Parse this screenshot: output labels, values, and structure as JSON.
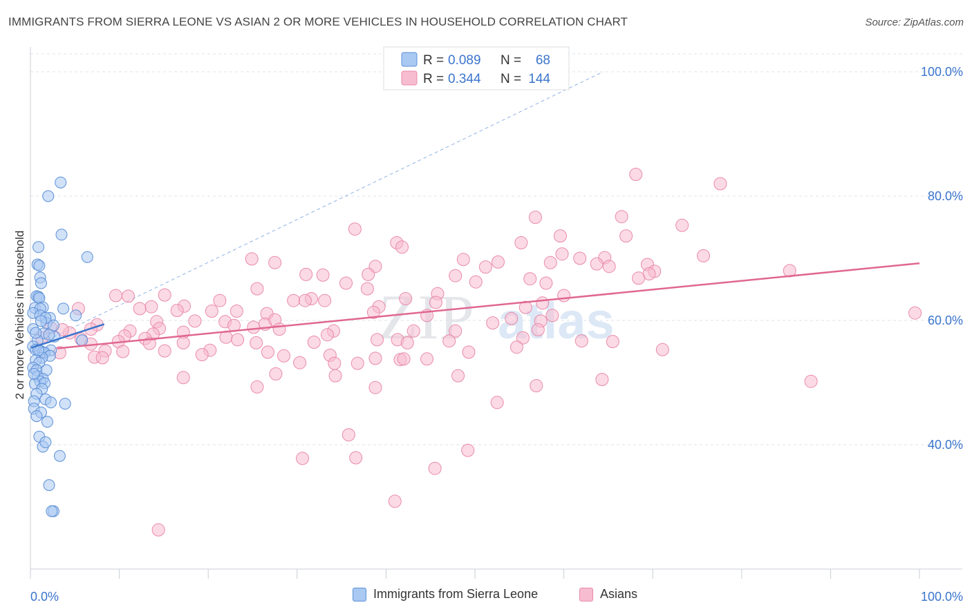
{
  "header": {
    "title": "IMMIGRANTS FROM SIERRA LEONE VS ASIAN 2 OR MORE VEHICLES IN HOUSEHOLD CORRELATION CHART",
    "source": "Source: ZipAtlas.com"
  },
  "watermark": {
    "zip": "ZIP",
    "atlas": "atlas"
  },
  "colors": {
    "blue_fill": "#a9c8f2",
    "blue_stroke": "#5b8fd6",
    "blue_line": "#3a74cc",
    "pink_fill": "#f7bcd0",
    "pink_stroke": "#e98aa9",
    "pink_line": "#e0678f",
    "accent_text": "#3a74cc",
    "grid": "#dde3ea"
  },
  "legend_top": {
    "rows": [
      {
        "r_label": "R = ",
        "r_value": "0.089",
        "n_label": "N = ",
        "n_value": "68"
      },
      {
        "r_label": "R = ",
        "r_value": "0.344",
        "n_label": "N = ",
        "n_value": "144"
      }
    ]
  },
  "legend_bottom": {
    "items": [
      {
        "label": "Immigrants from Sierra Leone"
      },
      {
        "label": "Asians"
      }
    ]
  },
  "chart_data": {
    "type": "scatter",
    "title": "IMMIGRANTS FROM SIERRA LEONE VS ASIAN 2 OR MORE VEHICLES IN HOUSEHOLD CORRELATION CHART",
    "xlabel": "",
    "ylabel": "2 or more Vehicles in Household",
    "xlim": [
      0,
      100
    ],
    "ylim": [
      20,
      104
    ],
    "x_tick_labels": [
      "0.0%",
      "100.0%"
    ],
    "y_ticks": [
      40,
      60,
      80,
      100
    ],
    "y_tick_labels": [
      "40.0%",
      "60.0%",
      "80.0%",
      "100.0%"
    ],
    "grid": true,
    "legend_position": "top-center",
    "series": [
      {
        "name": "Immigrants from Sierra Leone",
        "R": 0.089,
        "N": 68,
        "trend": {
          "x": [
            0.1,
            8.3
          ],
          "y": [
            55.6,
            59.4
          ]
        },
        "trend_extended": {
          "x": [
            0.1,
            64.4
          ],
          "y": [
            55.6,
            100.0
          ]
        },
        "points": [
          [
            3.4,
            82.2
          ],
          [
            2.0,
            80.0
          ],
          [
            3.5,
            73.8
          ],
          [
            0.9,
            71.8
          ],
          [
            6.4,
            70.2
          ],
          [
            0.8,
            69.0
          ],
          [
            1.0,
            68.8
          ],
          [
            1.1,
            66.9
          ],
          [
            1.2,
            66.0
          ],
          [
            0.7,
            63.9
          ],
          [
            0.9,
            63.8
          ],
          [
            1.0,
            63.6
          ],
          [
            0.5,
            62.0
          ],
          [
            1.4,
            62.1
          ],
          [
            1.1,
            61.9
          ],
          [
            3.7,
            61.9
          ],
          [
            0.3,
            61.2
          ],
          [
            1.1,
            60.8
          ],
          [
            2.2,
            60.4
          ],
          [
            5.1,
            60.8
          ],
          [
            1.8,
            59.6
          ],
          [
            2.6,
            59.2
          ],
          [
            0.3,
            58.6
          ],
          [
            1.5,
            57.9
          ],
          [
            2.7,
            57.4
          ],
          [
            0.8,
            56.8
          ],
          [
            5.8,
            56.8
          ],
          [
            0.3,
            55.8
          ],
          [
            2.3,
            55.2
          ],
          [
            0.6,
            55.3
          ],
          [
            1.1,
            55.1
          ],
          [
            1.4,
            54.9
          ],
          [
            1.6,
            54.8
          ],
          [
            2.2,
            54.3
          ],
          [
            1.3,
            54.0
          ],
          [
            0.6,
            53.6
          ],
          [
            1.0,
            53.2
          ],
          [
            0.3,
            52.4
          ],
          [
            0.7,
            52.0
          ],
          [
            1.8,
            52.0
          ],
          [
            0.8,
            51.0
          ],
          [
            1.4,
            50.6
          ],
          [
            1.1,
            50.2
          ],
          [
            0.5,
            49.8
          ],
          [
            1.6,
            49.9
          ],
          [
            1.3,
            49.0
          ],
          [
            0.7,
            48.2
          ],
          [
            1.7,
            47.3
          ],
          [
            0.4,
            47.0
          ],
          [
            2.3,
            46.8
          ],
          [
            3.9,
            46.6
          ],
          [
            0.4,
            45.8
          ],
          [
            1.2,
            45.2
          ],
          [
            0.7,
            44.6
          ],
          [
            1.9,
            43.7
          ],
          [
            1.0,
            41.3
          ],
          [
            1.4,
            39.7
          ],
          [
            1.7,
            40.4
          ],
          [
            3.3,
            38.2
          ],
          [
            2.1,
            33.5
          ],
          [
            2.6,
            29.3
          ],
          [
            2.4,
            29.3
          ],
          [
            0.6,
            58.0
          ],
          [
            1.7,
            60.4
          ],
          [
            1.2,
            59.9
          ],
          [
            0.4,
            51.4
          ],
          [
            2.1,
            57.7
          ],
          [
            0.9,
            55.2
          ]
        ]
      },
      {
        "name": "Asians",
        "R": 0.344,
        "N": 144,
        "trend": {
          "x": [
            3.0,
            100.0
          ],
          "y": [
            55.5,
            69.2
          ]
        },
        "points": [
          [
            68.1,
            83.5
          ],
          [
            77.6,
            82.0
          ],
          [
            56.8,
            76.6
          ],
          [
            66.5,
            76.7
          ],
          [
            73.3,
            75.3
          ],
          [
            36.5,
            74.7
          ],
          [
            59.6,
            73.6
          ],
          [
            67.0,
            73.6
          ],
          [
            55.2,
            72.5
          ],
          [
            41.2,
            72.5
          ],
          [
            41.8,
            71.8
          ],
          [
            59.8,
            70.7
          ],
          [
            61.8,
            70.0
          ],
          [
            24.9,
            69.9
          ],
          [
            48.7,
            69.8
          ],
          [
            58.5,
            69.3
          ],
          [
            64.6,
            70.1
          ],
          [
            75.7,
            70.4
          ],
          [
            52.6,
            69.4
          ],
          [
            27.5,
            69.3
          ],
          [
            63.7,
            69.1
          ],
          [
            69.4,
            69.0
          ],
          [
            38.8,
            68.7
          ],
          [
            51.2,
            68.6
          ],
          [
            65.1,
            68.7
          ],
          [
            70.2,
            67.9
          ],
          [
            31.0,
            67.4
          ],
          [
            32.9,
            67.3
          ],
          [
            47.8,
            67.2
          ],
          [
            69.6,
            67.5
          ],
          [
            68.4,
            66.8
          ],
          [
            38.0,
            67.4
          ],
          [
            85.4,
            68.0
          ],
          [
            56.2,
            66.7
          ],
          [
            35.5,
            66.0
          ],
          [
            58.0,
            66.0
          ],
          [
            50.1,
            66.2
          ],
          [
            25.5,
            65.1
          ],
          [
            37.9,
            65.1
          ],
          [
            15.1,
            64.1
          ],
          [
            45.8,
            64.3
          ],
          [
            60.0,
            64.0
          ],
          [
            31.6,
            63.5
          ],
          [
            11.0,
            63.9
          ],
          [
            42.2,
            63.5
          ],
          [
            29.6,
            63.2
          ],
          [
            21.3,
            63.2
          ],
          [
            30.9,
            63.2
          ],
          [
            33.1,
            63.2
          ],
          [
            9.6,
            64.0
          ],
          [
            13.6,
            62.2
          ],
          [
            17.3,
            62.3
          ],
          [
            57.6,
            62.8
          ],
          [
            39.2,
            62.2
          ],
          [
            45.6,
            62.9
          ],
          [
            12.3,
            61.9
          ],
          [
            20.4,
            61.5
          ],
          [
            23.2,
            61.5
          ],
          [
            38.6,
            61.3
          ],
          [
            16.5,
            61.6
          ],
          [
            26.6,
            61.1
          ],
          [
            55.7,
            62.1
          ],
          [
            99.5,
            61.2
          ],
          [
            44.6,
            60.8
          ],
          [
            58.7,
            60.8
          ],
          [
            5.4,
            61.9
          ],
          [
            14.2,
            59.8
          ],
          [
            18.5,
            59.9
          ],
          [
            21.9,
            59.8
          ],
          [
            26.4,
            59.4
          ],
          [
            27.5,
            60.1
          ],
          [
            52.0,
            59.6
          ],
          [
            54.1,
            60.3
          ],
          [
            57.4,
            59.9
          ],
          [
            7.5,
            59.3
          ],
          [
            22.9,
            59.2
          ],
          [
            25.1,
            58.9
          ],
          [
            28.0,
            58.6
          ],
          [
            34.1,
            58.3
          ],
          [
            2.3,
            58.8
          ],
          [
            6.8,
            58.6
          ],
          [
            11.2,
            58.3
          ],
          [
            14.5,
            58.7
          ],
          [
            43.1,
            58.3
          ],
          [
            47.8,
            58.3
          ],
          [
            57.1,
            58.5
          ],
          [
            4.4,
            58.0
          ],
          [
            10.6,
            57.5
          ],
          [
            13.8,
            57.8
          ],
          [
            17.2,
            58.1
          ],
          [
            22.0,
            57.3
          ],
          [
            33.4,
            57.7
          ],
          [
            1.3,
            57.2
          ],
          [
            5.7,
            57.0
          ],
          [
            12.9,
            57.1
          ],
          [
            25.4,
            56.4
          ],
          [
            39.0,
            56.9
          ],
          [
            41.3,
            56.9
          ],
          [
            47.1,
            56.7
          ],
          [
            55.4,
            57.2
          ],
          [
            6.8,
            56.2
          ],
          [
            9.9,
            56.6
          ],
          [
            13.4,
            56.3
          ],
          [
            17.2,
            56.4
          ],
          [
            23.3,
            56.9
          ],
          [
            31.9,
            56.5
          ],
          [
            42.4,
            56.4
          ],
          [
            62.0,
            56.7
          ],
          [
            65.5,
            56.6
          ],
          [
            8.4,
            55.1
          ],
          [
            15.1,
            55.1
          ],
          [
            20.2,
            55.2
          ],
          [
            26.7,
            54.9
          ],
          [
            33.7,
            54.4
          ],
          [
            49.3,
            54.9
          ],
          [
            54.7,
            55.7
          ],
          [
            71.1,
            55.3
          ],
          [
            3.3,
            54.8
          ],
          [
            7.2,
            54.1
          ],
          [
            19.3,
            54.5
          ],
          [
            28.5,
            54.3
          ],
          [
            41.6,
            53.7
          ],
          [
            44.6,
            53.8
          ],
          [
            34.2,
            53.1
          ],
          [
            38.8,
            53.9
          ],
          [
            42.0,
            53.8
          ],
          [
            30.3,
            53.2
          ],
          [
            36.8,
            53.1
          ],
          [
            27.6,
            51.4
          ],
          [
            48.1,
            51.1
          ],
          [
            17.2,
            50.8
          ],
          [
            64.3,
            50.5
          ],
          [
            34.3,
            51.1
          ],
          [
            87.8,
            50.2
          ],
          [
            38.8,
            49.2
          ],
          [
            25.5,
            49.3
          ],
          [
            56.9,
            49.5
          ],
          [
            52.5,
            46.8
          ],
          [
            35.8,
            41.6
          ],
          [
            49.2,
            39.1
          ],
          [
            30.6,
            37.8
          ],
          [
            36.6,
            37.9
          ],
          [
            45.5,
            36.2
          ],
          [
            41.0,
            30.9
          ],
          [
            14.4,
            26.3
          ],
          [
            8.1,
            54.0
          ],
          [
            10.4,
            55.0
          ],
          [
            3.6,
            58.5
          ]
        ]
      }
    ]
  }
}
